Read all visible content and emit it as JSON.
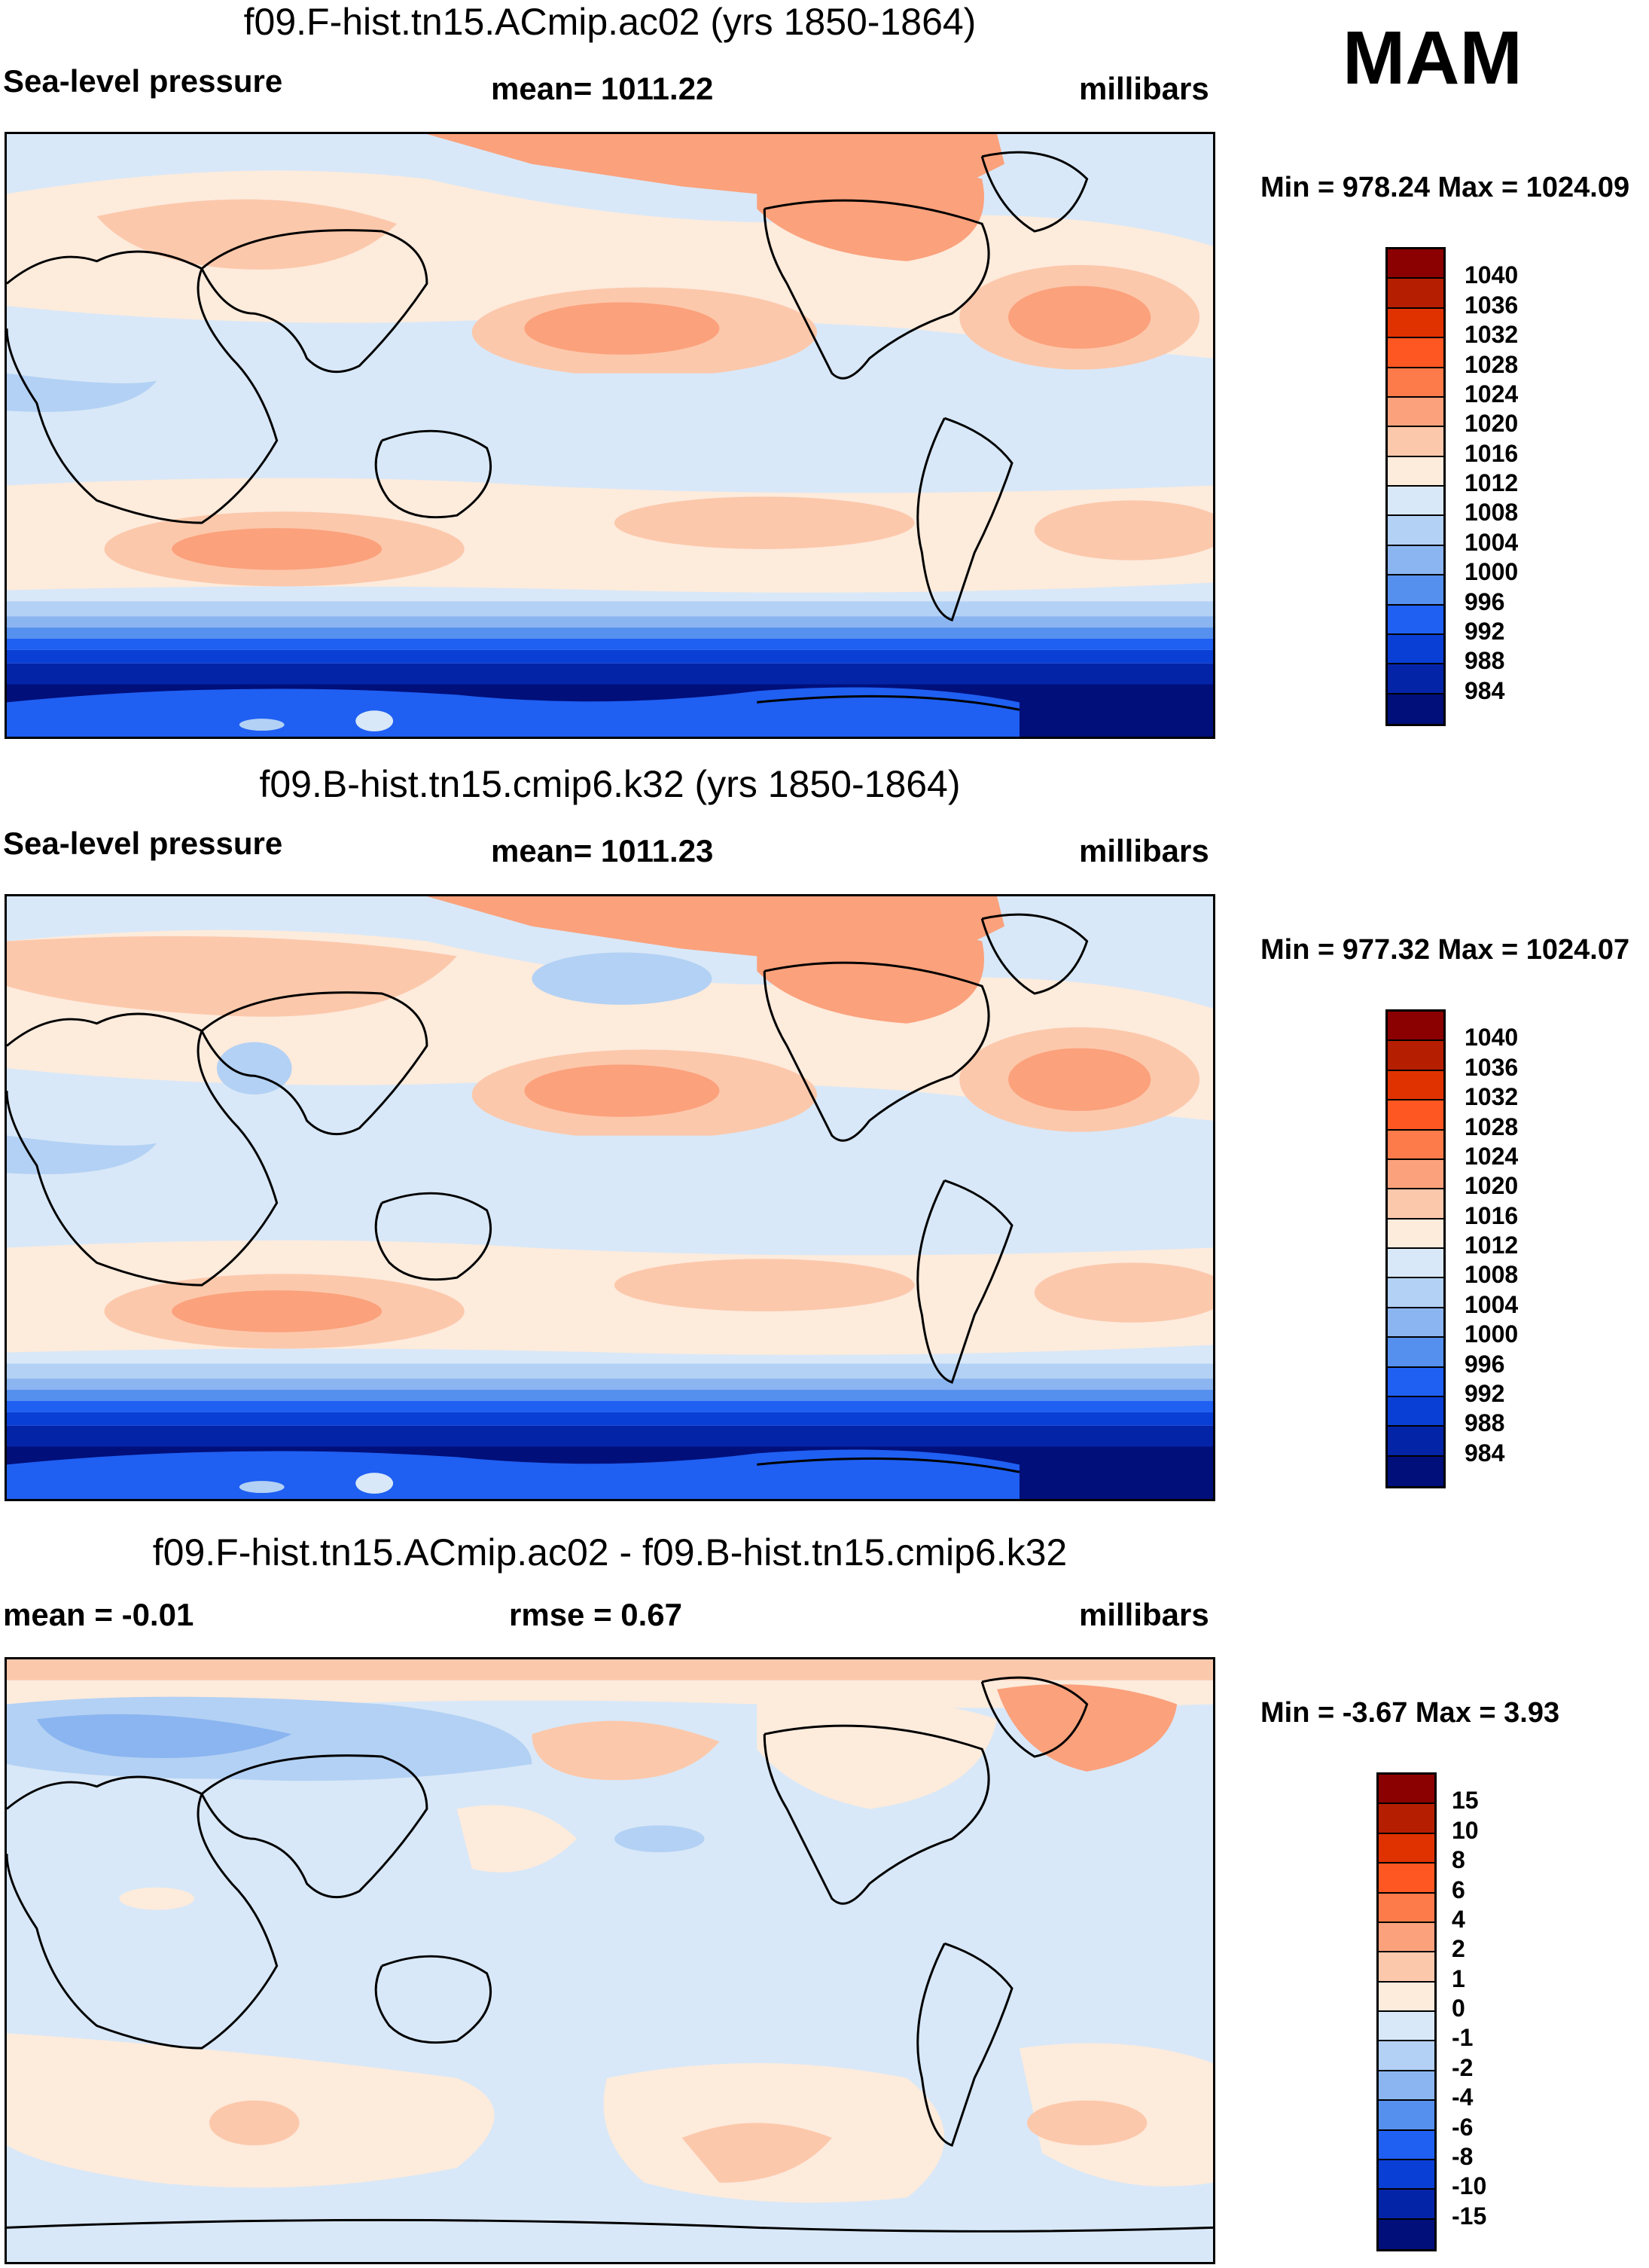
{
  "season": "MAM",
  "colors": {
    "abs_scale": [
      "#8b0000",
      "#b51e00",
      "#e03200",
      "#ff5722",
      "#fd7a4a",
      "#fba17c",
      "#fcc8ab",
      "#fdebdc",
      "#d8e8f8",
      "#b3d1f4",
      "#8bb5f0",
      "#5590ee",
      "#1f5ff2",
      "#0a3fd6",
      "#0424a8",
      "#000f7a"
    ],
    "diff_scale": [
      "#8b0000",
      "#b51e00",
      "#e03200",
      "#ff5722",
      "#fd7a4a",
      "#fba17c",
      "#fcc8ab",
      "#fdebdc",
      "#d8e8f8",
      "#b3d1f4",
      "#8bb5f0",
      "#5590ee",
      "#1f5ff2",
      "#0a3fd6",
      "#0424a8",
      "#000f7a"
    ]
  },
  "panels": [
    {
      "title": "f09.F-hist.tn15.ACmip.ac02 (yrs 1850-1864)",
      "left_label": "Sea-level pressure",
      "center_label": "mean= 1011.22",
      "right_label": "millibars",
      "minmax": "Min = 978.24 Max = 1024.09",
      "map_icon": "world-map-sea-level-pressure",
      "colorbar_levels": [
        "1040",
        "1036",
        "1032",
        "1028",
        "1024",
        "1020",
        "1016",
        "1012",
        "1008",
        "1004",
        "1000",
        "996",
        "992",
        "988",
        "984"
      ]
    },
    {
      "title": "f09.B-hist.tn15.cmip6.k32 (yrs 1850-1864)",
      "left_label": "Sea-level pressure",
      "center_label": "mean= 1011.23",
      "right_label": "millibars",
      "minmax": "Min = 977.32 Max = 1024.07",
      "map_icon": "world-map-sea-level-pressure",
      "colorbar_levels": [
        "1040",
        "1036",
        "1032",
        "1028",
        "1024",
        "1020",
        "1016",
        "1012",
        "1008",
        "1004",
        "1000",
        "996",
        "992",
        "988",
        "984"
      ]
    },
    {
      "title": "f09.F-hist.tn15.ACmip.ac02 - f09.B-hist.tn15.cmip6.k32",
      "left_label": "mean =  -0.01",
      "center_label": "rmse =   0.67",
      "right_label": "millibars",
      "minmax": "Min =  -3.67 Max =   3.93",
      "map_icon": "world-map-pressure-difference",
      "colorbar_levels": [
        "15",
        "10",
        "8",
        "6",
        "4",
        "2",
        "1",
        "0",
        "-1",
        "-2",
        "-4",
        "-6",
        "-8",
        "-10",
        "-15"
      ]
    }
  ]
}
